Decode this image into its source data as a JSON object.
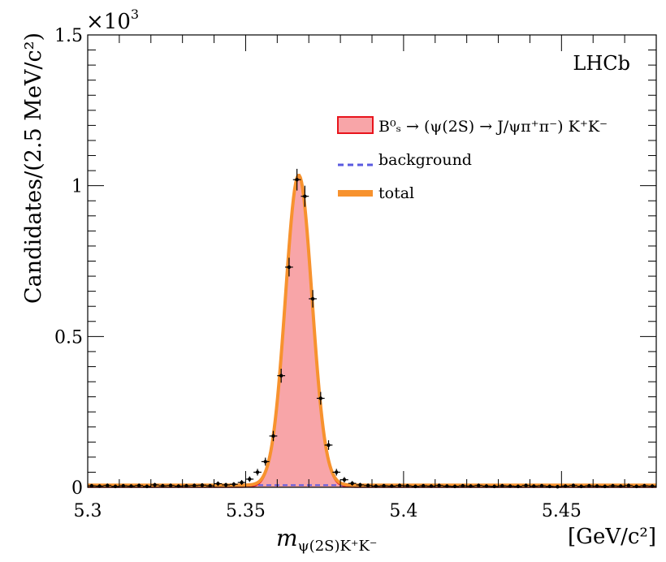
{
  "chart_data": {
    "type": "line",
    "experiment_label": "LHCb",
    "xlabel_symbol": "m",
    "xlabel_subscript": "ψ(2S)K⁺K⁻",
    "xlabel_unit": "[GeV/c²]",
    "ylabel": "Candidates/(2.5 MeV/c²)",
    "y_multiplier_base": "×10",
    "y_multiplier_exp": "3",
    "xlim": [
      5.3,
      5.48
    ],
    "ylim": [
      0,
      1.5
    ],
    "x_ticks": [
      {
        "value": 5.3,
        "label": "5.3"
      },
      {
        "value": 5.35,
        "label": "5.35"
      },
      {
        "value": 5.4,
        "label": "5.4"
      },
      {
        "value": 5.45,
        "label": "5.45"
      }
    ],
    "y_ticks": [
      {
        "value": 0,
        "label": "0"
      },
      {
        "value": 0.5,
        "label": "0.5"
      },
      {
        "value": 1,
        "label": "1"
      },
      {
        "value": 1.5,
        "label": "1.5"
      }
    ],
    "legend": [
      {
        "key": "signal",
        "label": "B⁰ₛ → (ψ(2S) → J/ψπ⁺π⁻) K⁺K⁻",
        "style": "filled-box"
      },
      {
        "key": "background",
        "label": "background",
        "style": "dashed-line"
      },
      {
        "key": "total",
        "label": "total",
        "style": "thick-line"
      }
    ],
    "colors": {
      "signal_fill": "#f8a5a8",
      "signal_edge": "#e8141c",
      "background": "#5a5ae0",
      "total": "#f7922e",
      "data": "#000000"
    },
    "fit_model": {
      "mean": 5.3668,
      "sigma": 0.0042,
      "peak": 1.028,
      "background_level": 0.007
    },
    "data_points": {
      "x": [
        5.30125,
        5.30375,
        5.30625,
        5.30875,
        5.31125,
        5.31375,
        5.31625,
        5.31875,
        5.32125,
        5.32375,
        5.32625,
        5.32875,
        5.33125,
        5.33375,
        5.33625,
        5.33875,
        5.34125,
        5.34375,
        5.34625,
        5.34875,
        5.35125,
        5.35375,
        5.35625,
        5.35875,
        5.36125,
        5.36375,
        5.36625,
        5.36875,
        5.37125,
        5.37375,
        5.37625,
        5.37875,
        5.38125,
        5.38375,
        5.38625,
        5.38875,
        5.39125,
        5.39375,
        5.39625,
        5.39875,
        5.40125,
        5.40375,
        5.40625,
        5.40875,
        5.41125,
        5.41375,
        5.41625,
        5.41875,
        5.42125,
        5.42375,
        5.42625,
        5.42875,
        5.43125,
        5.43375,
        5.43625,
        5.43875,
        5.44125,
        5.44375,
        5.44625,
        5.44875,
        5.45125,
        5.45375,
        5.45625,
        5.45875,
        5.46125,
        5.46375,
        5.46625,
        5.46875,
        5.47125,
        5.47375,
        5.47625,
        5.47875
      ],
      "y": [
        0.005,
        0.004,
        0.006,
        0.003,
        0.005,
        0.004,
        0.006,
        0.003,
        0.008,
        0.005,
        0.006,
        0.004,
        0.005,
        0.006,
        0.007,
        0.005,
        0.012,
        0.008,
        0.01,
        0.016,
        0.027,
        0.05,
        0.085,
        0.17,
        0.37,
        0.73,
        1.02,
        0.965,
        0.625,
        0.295,
        0.14,
        0.05,
        0.025,
        0.013,
        0.008,
        0.006,
        0.004,
        0.005,
        0.004,
        0.006,
        0.005,
        0.003,
        0.005,
        0.004,
        0.006,
        0.004,
        0.003,
        0.005,
        0.004,
        0.006,
        0.004,
        0.003,
        0.005,
        0.004,
        0.003,
        0.006,
        0.004,
        0.005,
        0.003,
        0.002,
        0.004,
        0.006,
        0.003,
        0.005,
        0.004,
        0.003,
        0.005,
        0.004,
        0.006,
        0.003,
        0.005,
        0.004
      ]
    }
  }
}
